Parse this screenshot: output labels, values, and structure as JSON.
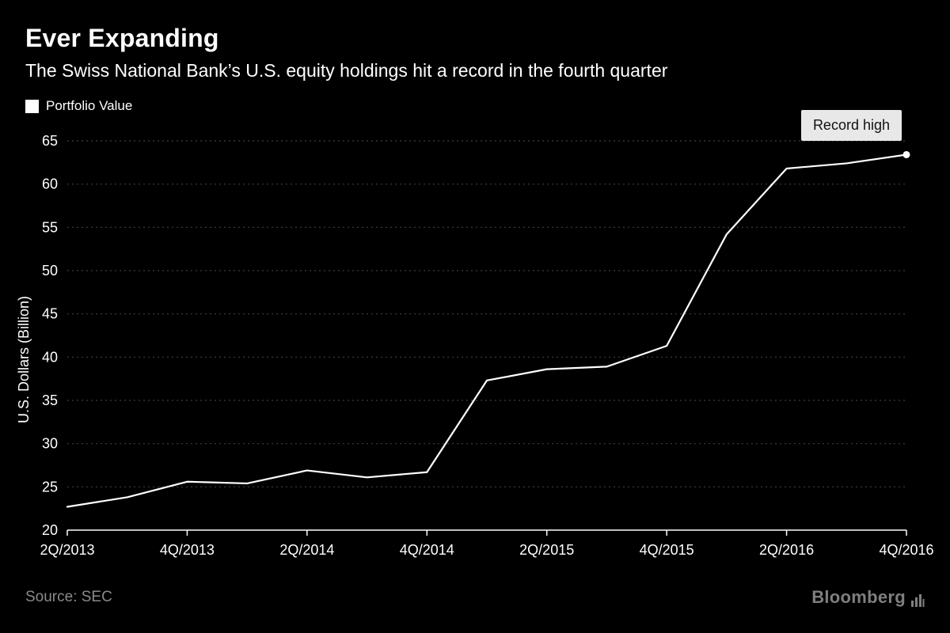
{
  "header": {
    "title": "Ever Expanding",
    "subtitle": "The Swiss National Bank’s U.S. equity holdings hit a record in the fourth quarter",
    "legend_label": "Portfolio Value"
  },
  "annotation": {
    "text": "Record high"
  },
  "footer": {
    "source": "Source: SEC",
    "brand": "Bloomberg"
  },
  "chart_data": {
    "type": "line",
    "title": "Ever Expanding",
    "subtitle": "The Swiss National Bank’s U.S. equity holdings hit a record in the fourth quarter",
    "xlabel": "",
    "ylabel": "U.S. Dollars (Billion)",
    "x": [
      "2Q/2013",
      "3Q/2013",
      "4Q/2013",
      "1Q/2014",
      "2Q/2014",
      "3Q/2014",
      "4Q/2014",
      "1Q/2015",
      "2Q/2015",
      "3Q/2015",
      "4Q/2015",
      "1Q/2016",
      "2Q/2016",
      "3Q/2016",
      "4Q/2016"
    ],
    "x_tick_labels": [
      "2Q/2013",
      "4Q/2013",
      "2Q/2014",
      "4Q/2014",
      "2Q/2015",
      "4Q/2015",
      "2Q/2016",
      "4Q/2016"
    ],
    "series": [
      {
        "name": "Portfolio Value",
        "values": [
          22.7,
          23.8,
          25.6,
          25.4,
          26.9,
          26.1,
          26.7,
          37.3,
          38.6,
          38.9,
          41.3,
          54.2,
          61.8,
          62.4,
          63.4
        ]
      }
    ],
    "ylim": [
      20,
      65
    ],
    "yticks": [
      20,
      25,
      30,
      35,
      40,
      45,
      50,
      55,
      60,
      65
    ],
    "grid": "horizontal-dashed",
    "legend_position": "top-left",
    "end_marker": "dot-on-last-point",
    "annotation": {
      "text": "Record high",
      "point": "4Q/2016"
    },
    "colors": {
      "background": "#000000",
      "line": "#ffffff",
      "grid": "#3f3f3f",
      "axis": "#ffffff",
      "tick_text": "#ffffff",
      "annotation_bg": "#e8e8e8",
      "annotation_text": "#111111"
    }
  }
}
